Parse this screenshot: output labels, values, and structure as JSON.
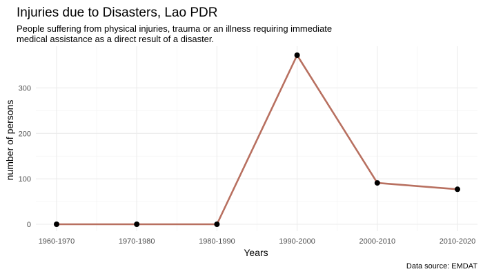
{
  "chart_data": {
    "type": "line",
    "title": "Injuries due to Disasters, Lao PDR",
    "subtitle_lines": [
      "People suffering from physical injuries, trauma or an illness requiring immediate",
      "medical assistance as a direct result of a disaster."
    ],
    "xlabel": "Years",
    "ylabel": "number of persons",
    "caption": "Data source: EMDAT",
    "categories": [
      "1960-1970",
      "1970-1980",
      "1980-1990",
      "1990-2000",
      "2000-2010",
      "2010-2020"
    ],
    "values": [
      0,
      0,
      0,
      372,
      91,
      77
    ],
    "ylim": [
      0,
      372
    ],
    "yticks": [
      0,
      100,
      200,
      300
    ],
    "grid": true,
    "legend": "none",
    "line_color": "#b87060",
    "point_color": "#000000"
  }
}
